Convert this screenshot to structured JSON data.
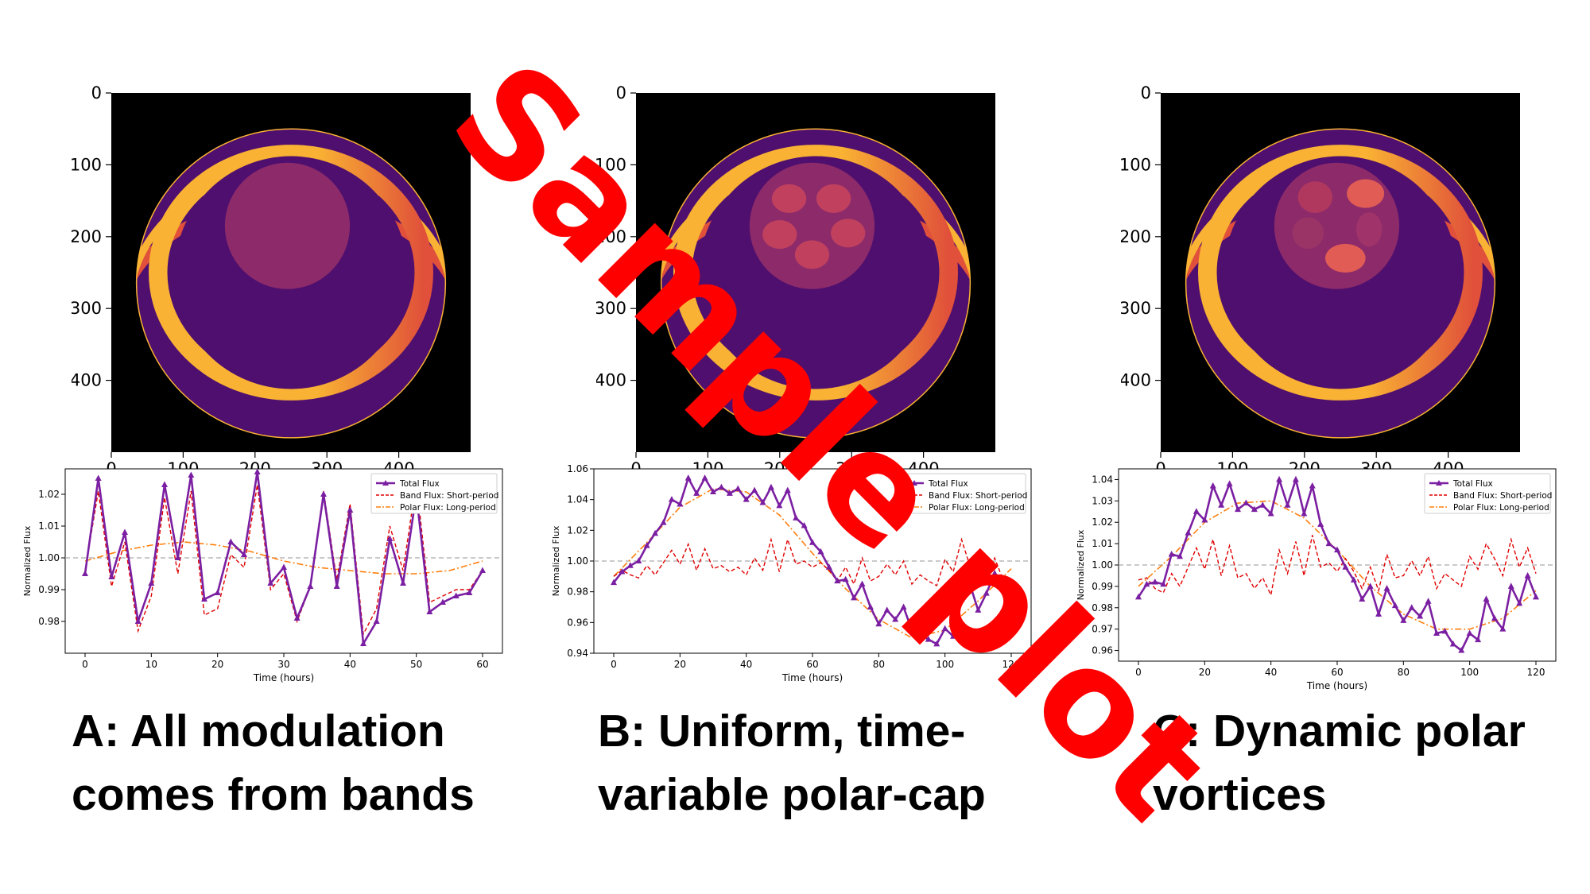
{
  "panels": [
    {
      "id": "A",
      "caption_line1": "A: All modulation",
      "caption_line2": "comes from bands",
      "image": {
        "x_ticks": [
          "0",
          "100",
          "200",
          "300",
          "400"
        ],
        "y_ticks": [
          "0",
          "100",
          "200",
          "300",
          "400"
        ],
        "polar_cap": "uniform"
      }
    },
    {
      "id": "B",
      "caption_line1": "B: Uniform, time-",
      "caption_line2": "variable polar-cap",
      "image": {
        "x_ticks": [
          "0",
          "100",
          "200",
          "300",
          "400"
        ],
        "y_ticks": [
          "0",
          "100",
          "200",
          "300",
          "400"
        ],
        "polar_cap": "five-vortices"
      }
    },
    {
      "id": "C",
      "caption_line1": "C: Dynamic polar",
      "caption_line2": "vortices",
      "image": {
        "x_ticks": [
          "0",
          "100",
          "200",
          "300",
          "400"
        ],
        "y_ticks": [
          "0",
          "100",
          "200",
          "300",
          "400"
        ],
        "polar_cap": "dynamic-vortices"
      }
    }
  ],
  "watermark": {
    "text": "Sample plot",
    "color": "#ff0000"
  },
  "colors": {
    "total": "#7b1fa2",
    "band": "#e00000",
    "polar": "#ff7f0e",
    "reference": "#aaaaaa",
    "bg_dark": "#000000",
    "disk": "#4f0f6e",
    "band_bright": "#f9b233",
    "band_mid": "#e0503a",
    "cap": "#8c2a6a"
  },
  "chart_data": [
    {
      "type": "line",
      "xlabel": "Time (hours)",
      "ylabel": "Normalized Flux",
      "xlim": [
        -3,
        63
      ],
      "ylim": [
        0.97,
        1.028
      ],
      "x_ticks": [
        0,
        10,
        20,
        30,
        40,
        50,
        60
      ],
      "y_ticks": [
        0.98,
        0.99,
        1.0,
        1.01,
        1.02
      ],
      "y_tick_labels": [
        "0.98",
        "0.99",
        "1.00",
        "1.01",
        "1.02"
      ],
      "reference_line": 1.0,
      "legend_position": "top-right",
      "series": [
        {
          "name": "Total Flux",
          "style": "solid-triangle",
          "x": [
            0,
            2,
            4,
            6,
            8,
            10,
            12,
            14,
            16,
            18,
            20,
            22,
            24,
            26,
            28,
            30,
            32,
            34,
            36,
            38,
            40,
            42,
            44,
            46,
            48,
            50,
            52,
            54,
            56,
            58,
            60
          ],
          "values": [
            0.995,
            1.025,
            0.994,
            1.008,
            0.98,
            0.992,
            1.023,
            1.0,
            1.026,
            0.987,
            0.989,
            1.005,
            1.001,
            1.027,
            0.992,
            0.997,
            0.981,
            0.991,
            1.02,
            0.991,
            1.015,
            0.973,
            0.98,
            1.006,
            0.992,
            1.02,
            0.983,
            0.986,
            0.988,
            0.989,
            0.996
          ]
        },
        {
          "name": "Band Flux: Short-period",
          "style": "dashed",
          "x": [
            0,
            2,
            4,
            6,
            8,
            10,
            12,
            14,
            16,
            18,
            20,
            22,
            24,
            26,
            28,
            30,
            32,
            34,
            36,
            38,
            40,
            42,
            44,
            46,
            48,
            50,
            52,
            54,
            56,
            58,
            60
          ],
          "values": [
            0.996,
            1.021,
            0.991,
            1.005,
            0.977,
            0.988,
            1.019,
            0.995,
            1.021,
            0.982,
            0.984,
            1.001,
            0.997,
            1.023,
            0.99,
            0.995,
            0.98,
            0.991,
            1.021,
            0.993,
            1.017,
            0.976,
            0.984,
            1.01,
            0.996,
            1.024,
            0.986,
            0.988,
            0.99,
            0.99,
            0.996
          ]
        },
        {
          "name": "Polar Flux: Long-period",
          "style": "dashdot",
          "x": [
            0,
            5,
            10,
            15,
            20,
            25,
            30,
            35,
            40,
            45,
            50,
            55,
            60
          ],
          "values": [
            0.999,
            1.002,
            1.004,
            1.005,
            1.004,
            1.002,
            0.999,
            0.997,
            0.996,
            0.995,
            0.995,
            0.996,
            0.999
          ]
        }
      ]
    },
    {
      "type": "line",
      "xlabel": "Time (hours)",
      "ylabel": "Normalized Flux",
      "xlim": [
        -6,
        126
      ],
      "ylim": [
        0.94,
        1.06
      ],
      "x_ticks": [
        0,
        20,
        40,
        60,
        80,
        100,
        120
      ],
      "y_ticks": [
        0.94,
        0.96,
        0.98,
        1.0,
        1.02,
        1.04,
        1.06
      ],
      "y_tick_labels": [
        "0.94",
        "0.96",
        "0.98",
        "1.00",
        "1.02",
        "1.04",
        "1.06"
      ],
      "reference_line": 1.0,
      "legend_position": "top-right",
      "series": [
        {
          "name": "Total Flux",
          "style": "solid-triangle",
          "x": [
            0,
            2.5,
            5,
            7.5,
            10,
            12.5,
            15,
            17.5,
            20,
            22.5,
            25,
            27.5,
            30,
            32.5,
            35,
            37.5,
            40,
            42.5,
            45,
            47.5,
            50,
            52.5,
            55,
            57.5,
            60,
            62.5,
            65,
            67.5,
            70,
            72.5,
            75,
            77.5,
            80,
            82.5,
            85,
            87.5,
            90,
            92.5,
            95,
            97.5,
            100,
            102.5,
            105,
            107.5,
            110,
            112.5,
            115,
            117.5,
            120
          ],
          "values": [
            0.986,
            0.993,
            0.997,
            1.0,
            1.01,
            1.018,
            1.025,
            1.04,
            1.037,
            1.054,
            1.044,
            1.054,
            1.045,
            1.048,
            1.044,
            1.047,
            1.04,
            1.046,
            1.038,
            1.048,
            1.036,
            1.046,
            1.028,
            1.023,
            1.012,
            1.006,
            0.996,
            0.987,
            0.988,
            0.976,
            0.985,
            0.97,
            0.959,
            0.968,
            0.962,
            0.97,
            0.955,
            0.952,
            0.949,
            0.946,
            0.956,
            0.951,
            0.975,
            0.985,
            0.968,
            0.979,
            0.992,
            0.986,
            0.984
          ]
        },
        {
          "name": "Band Flux: Short-period",
          "style": "dashed",
          "x": [
            0,
            2.5,
            5,
            7.5,
            10,
            12.5,
            15,
            17.5,
            20,
            22.5,
            25,
            27.5,
            30,
            32.5,
            35,
            37.5,
            40,
            42.5,
            45,
            47.5,
            50,
            52.5,
            55,
            57.5,
            60,
            62.5,
            65,
            67.5,
            70,
            72.5,
            75,
            77.5,
            80,
            82.5,
            85,
            87.5,
            90,
            92.5,
            95,
            97.5,
            100,
            102.5,
            105,
            107.5,
            110,
            112.5,
            115,
            117.5,
            120
          ],
          "values": [
            0.99,
            0.994,
            0.991,
            0.989,
            0.997,
            0.991,
            0.999,
            1.007,
            0.998,
            1.011,
            0.994,
            1.008,
            0.995,
            0.997,
            0.993,
            0.996,
            0.991,
            1.002,
            0.994,
            1.014,
            0.993,
            1.014,
            0.998,
            1.0,
            0.996,
            0.999,
            0.994,
            0.987,
            0.996,
            0.985,
            1.002,
            0.987,
            0.99,
            0.998,
            0.991,
            1.0,
            0.985,
            0.991,
            0.987,
            0.984,
            1.001,
            0.993,
            1.014,
            0.997,
            0.986,
            0.99,
            1.002,
            0.988,
            0.986
          ]
        },
        {
          "name": "Polar Flux: Long-period",
          "style": "dashdot",
          "x": [
            0,
            10,
            20,
            30,
            40,
            50,
            60,
            70,
            80,
            90,
            100,
            110,
            120
          ],
          "values": [
            0.99,
            1.012,
            1.035,
            1.047,
            1.045,
            1.03,
            1.005,
            0.982,
            0.962,
            0.95,
            0.955,
            0.974,
            0.995
          ]
        }
      ]
    },
    {
      "type": "line",
      "xlabel": "Time (hours)",
      "ylabel": "Normalized Flux",
      "xlim": [
        -6,
        126
      ],
      "ylim": [
        0.955,
        1.045
      ],
      "x_ticks": [
        0,
        20,
        40,
        60,
        80,
        100,
        120
      ],
      "y_ticks": [
        0.96,
        0.97,
        0.98,
        0.99,
        1.0,
        1.01,
        1.02,
        1.03,
        1.04
      ],
      "y_tick_labels": [
        "0.96",
        "0.97",
        "0.98",
        "0.99",
        "1.00",
        "1.01",
        "1.02",
        "1.03",
        "1.04"
      ],
      "reference_line": 1.0,
      "legend_position": "top-right",
      "series": [
        {
          "name": "Total Flux",
          "style": "solid-triangle",
          "x": [
            0,
            2.5,
            5,
            7.5,
            10,
            12.5,
            15,
            17.5,
            20,
            22.5,
            25,
            27.5,
            30,
            32.5,
            35,
            37.5,
            40,
            42.5,
            45,
            47.5,
            50,
            52.5,
            55,
            57.5,
            60,
            62.5,
            65,
            67.5,
            70,
            72.5,
            75,
            77.5,
            80,
            82.5,
            85,
            87.5,
            90,
            92.5,
            95,
            97.5,
            100,
            102.5,
            105,
            107.5,
            110,
            112.5,
            115,
            117.5,
            120
          ],
          "values": [
            0.985,
            0.991,
            0.992,
            0.991,
            1.005,
            1.004,
            1.015,
            1.025,
            1.021,
            1.037,
            1.028,
            1.038,
            1.026,
            1.029,
            1.026,
            1.028,
            1.024,
            1.04,
            1.028,
            1.04,
            1.024,
            1.037,
            1.019,
            1.01,
            1.007,
            0.999,
            0.993,
            0.984,
            0.99,
            0.977,
            0.989,
            0.981,
            0.974,
            0.98,
            0.976,
            0.983,
            0.968,
            0.969,
            0.963,
            0.96,
            0.968,
            0.965,
            0.984,
            0.975,
            0.97,
            0.99,
            0.982,
            0.995,
            0.985
          ]
        },
        {
          "name": "Band Flux: Short-period",
          "style": "dashed",
          "x": [
            0,
            2.5,
            5,
            7.5,
            10,
            12.5,
            15,
            17.5,
            20,
            22.5,
            25,
            27.5,
            30,
            32.5,
            35,
            37.5,
            40,
            42.5,
            45,
            47.5,
            50,
            52.5,
            55,
            57.5,
            60,
            62.5,
            65,
            67.5,
            70,
            72.5,
            75,
            77.5,
            80,
            82.5,
            85,
            87.5,
            90,
            92.5,
            95,
            97.5,
            100,
            102.5,
            105,
            107.5,
            110,
            112.5,
            115,
            117.5,
            120
          ],
          "values": [
            0.993,
            0.994,
            0.989,
            0.987,
            0.996,
            0.99,
            0.999,
            1.008,
            0.998,
            1.012,
            0.995,
            1.009,
            0.994,
            0.996,
            0.989,
            0.994,
            0.986,
            1.007,
            0.996,
            1.011,
            0.995,
            1.014,
            0.999,
            1.001,
            0.997,
            1.003,
            0.997,
            0.989,
            0.999,
            0.988,
            1.005,
            0.994,
            0.995,
            1.002,
            0.995,
            1.004,
            0.989,
            0.996,
            0.993,
            0.99,
            1.004,
            0.998,
            1.01,
            1.003,
            0.995,
            1.012,
            0.999,
            1.008,
            0.996
          ]
        },
        {
          "name": "Polar Flux: Long-period",
          "style": "dashdot",
          "x": [
            0,
            10,
            20,
            30,
            40,
            50,
            60,
            70,
            80,
            90,
            100,
            110,
            120
          ],
          "values": [
            0.99,
            1.004,
            1.02,
            1.029,
            1.03,
            1.022,
            1.007,
            0.99,
            0.977,
            0.97,
            0.97,
            0.975,
            0.988
          ]
        }
      ]
    }
  ]
}
